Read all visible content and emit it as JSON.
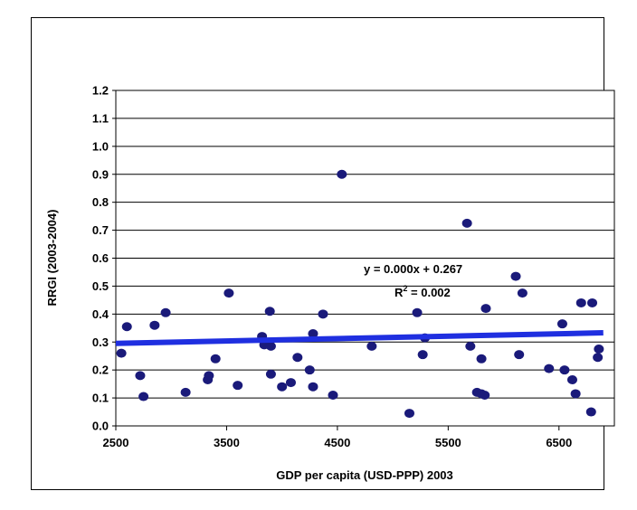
{
  "chart_data": {
    "type": "scatter",
    "title": "",
    "xlabel": "GDP per capita (USD-PPP) 2003",
    "ylabel": "RRGI (2003-2004)",
    "xlim": [
      2500,
      7000
    ],
    "ylim": [
      0.0,
      1.2
    ],
    "x_ticks": [
      "2500",
      "3500",
      "4500",
      "5500",
      "6500"
    ],
    "y_ticks": [
      "0.0",
      "0.1",
      "0.2",
      "0.3",
      "0.4",
      "0.5",
      "0.6",
      "0.7",
      "0.8",
      "0.9",
      "1.0",
      "1.1",
      "1.2"
    ],
    "grid": "horizontal",
    "marker_color": "#1a1a7a",
    "trendline_color": "#1f2fe0",
    "trendline": {
      "equation_label": "y = 0.000x + 0.267",
      "r2_label_prefix": "R",
      "r2_label_exp": "2",
      "r2_label_value": " = 0.002",
      "x": [
        2500,
        6900
      ],
      "y": [
        0.295,
        0.333
      ]
    },
    "points": [
      [
        2550,
        0.26
      ],
      [
        2600,
        0.355
      ],
      [
        2720,
        0.18
      ],
      [
        2750,
        0.105
      ],
      [
        2850,
        0.36
      ],
      [
        2950,
        0.405
      ],
      [
        3130,
        0.12
      ],
      [
        3330,
        0.165
      ],
      [
        3340,
        0.18
      ],
      [
        3400,
        0.24
      ],
      [
        3520,
        0.475
      ],
      [
        3600,
        0.145
      ],
      [
        3820,
        0.32
      ],
      [
        3840,
        0.29
      ],
      [
        3890,
        0.41
      ],
      [
        3900,
        0.285
      ],
      [
        3900,
        0.185
      ],
      [
        4000,
        0.14
      ],
      [
        4080,
        0.155
      ],
      [
        4140,
        0.245
      ],
      [
        4250,
        0.2
      ],
      [
        4280,
        0.33
      ],
      [
        4280,
        0.14
      ],
      [
        4370,
        0.4
      ],
      [
        4460,
        0.11
      ],
      [
        4540,
        0.9
      ],
      [
        4810,
        0.285
      ],
      [
        5150,
        0.045
      ],
      [
        5220,
        0.405
      ],
      [
        5270,
        0.255
      ],
      [
        5290,
        0.315
      ],
      [
        5670,
        0.725
      ],
      [
        5700,
        0.285
      ],
      [
        5760,
        0.12
      ],
      [
        5800,
        0.24
      ],
      [
        5800,
        0.115
      ],
      [
        5830,
        0.11
      ],
      [
        5840,
        0.42
      ],
      [
        6110,
        0.535
      ],
      [
        6140,
        0.255
      ],
      [
        6170,
        0.475
      ],
      [
        6410,
        0.205
      ],
      [
        6530,
        0.365
      ],
      [
        6550,
        0.2
      ],
      [
        6620,
        0.165
      ],
      [
        6650,
        0.115
      ],
      [
        6700,
        0.44
      ],
      [
        6790,
        0.05
      ],
      [
        6800,
        0.44
      ],
      [
        6850,
        0.245
      ],
      [
        6860,
        0.275
      ]
    ]
  }
}
